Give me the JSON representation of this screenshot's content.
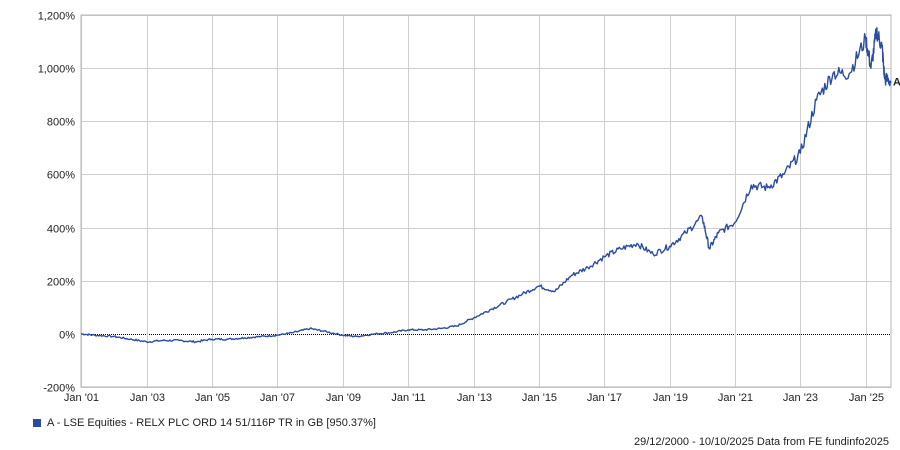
{
  "chart_data": {
    "type": "line",
    "title": "",
    "xlabel": "",
    "ylabel": "",
    "ylim": [
      -200,
      1200
    ],
    "y_ticks": [
      -200,
      0,
      200,
      400,
      600,
      800,
      1000,
      1200
    ],
    "y_tick_labels": [
      "-200%",
      "0%",
      "200%",
      "400%",
      "600%",
      "800%",
      "1,000%",
      "1,200%"
    ],
    "x_ticks": [
      "Jan '01",
      "Jan '03",
      "Jan '05",
      "Jan '07",
      "Jan '09",
      "Jan '11",
      "Jan '13",
      "Jan '15",
      "Jan '17",
      "Jan '19",
      "Jan '21",
      "Jan '23",
      "Jan '25"
    ],
    "xlim": [
      "2000-12-29",
      "2025-10-10"
    ],
    "grid": true,
    "zero_line": true,
    "series": [
      {
        "name": "A - LSE Equities - RELX PLC ORD 14 51/116P TR in GB [950.37%]",
        "end_marker": "A",
        "color": "#2b4da0",
        "x": [
          "2000-12-29",
          "2001-06-01",
          "2002-01-01",
          "2002-07-01",
          "2003-01-01",
          "2003-07-01",
          "2004-01-01",
          "2004-07-01",
          "2005-01-01",
          "2005-07-01",
          "2006-01-01",
          "2006-07-01",
          "2007-01-01",
          "2007-07-01",
          "2008-01-01",
          "2008-06-01",
          "2009-01-01",
          "2009-06-01",
          "2010-01-01",
          "2010-07-01",
          "2011-01-01",
          "2011-07-01",
          "2012-01-01",
          "2012-07-01",
          "2013-01-01",
          "2013-07-01",
          "2014-01-01",
          "2014-07-01",
          "2015-01-01",
          "2015-07-01",
          "2016-01-01",
          "2016-07-01",
          "2017-01-01",
          "2017-07-01",
          "2018-01-01",
          "2018-07-01",
          "2019-01-01",
          "2019-07-01",
          "2020-01-01",
          "2020-03-20",
          "2020-07-01",
          "2021-01-01",
          "2021-07-01",
          "2022-01-01",
          "2022-07-01",
          "2023-01-01",
          "2023-07-01",
          "2024-01-01",
          "2024-07-01",
          "2025-01-01",
          "2025-03-01",
          "2025-05-01",
          "2025-07-01",
          "2025-08-01",
          "2025-10-10"
        ],
        "values": [
          0,
          -5,
          -10,
          -20,
          -30,
          -25,
          -25,
          -30,
          -20,
          -20,
          -15,
          -10,
          -5,
          5,
          20,
          10,
          -5,
          -10,
          0,
          5,
          15,
          15,
          20,
          30,
          60,
          90,
          120,
          150,
          180,
          160,
          220,
          250,
          290,
          320,
          340,
          300,
          330,
          380,
          440,
          320,
          380,
          420,
          560,
          550,
          600,
          680,
          880,
          980,
          980,
          1110,
          1000,
          1140,
          1080,
          960,
          950.37
        ]
      }
    ]
  },
  "legend": {
    "label": "A - LSE Equities - RELX PLC ORD 14 51/116P TR in GB [950.37%]",
    "color": "#2b4da0"
  },
  "footer": {
    "text": "29/12/2000 - 10/10/2025 Data from FE fundinfo2025"
  }
}
